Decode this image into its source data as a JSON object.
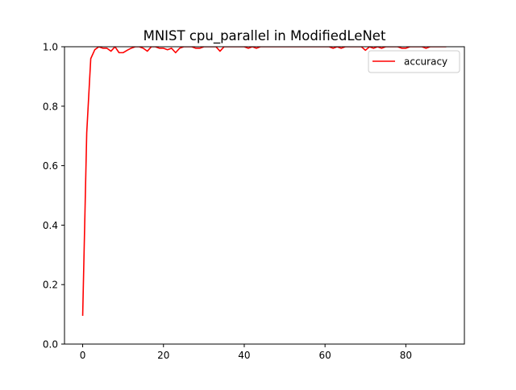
{
  "chart_data": {
    "type": "line",
    "title": "MNIST cpu_parallel in ModifiedLeNet",
    "xlabel": "",
    "ylabel": "",
    "xlim": [
      -4.5,
      94.5
    ],
    "ylim": [
      0.0,
      1.0
    ],
    "xticks": [
      0,
      20,
      40,
      60,
      80
    ],
    "xtick_labels": [
      "0",
      "20",
      "40",
      "60",
      "80"
    ],
    "yticks": [
      0.0,
      0.2,
      0.4,
      0.6,
      0.8,
      1.0
    ],
    "ytick_labels": [
      "0.0",
      "0.2",
      "0.4",
      "0.6",
      "0.8",
      "1.0"
    ],
    "grid": false,
    "legend_position": "upper right",
    "series": [
      {
        "name": "accuracy",
        "color": "#ff0000",
        "x": [
          0,
          1,
          2,
          3,
          4,
          5,
          6,
          7,
          8,
          9,
          10,
          11,
          12,
          13,
          14,
          15,
          16,
          17,
          18,
          19,
          20,
          21,
          22,
          23,
          24,
          25,
          26,
          27,
          28,
          29,
          30,
          31,
          32,
          33,
          34,
          35,
          36,
          37,
          38,
          39,
          40,
          41,
          42,
          43,
          44,
          45,
          46,
          47,
          48,
          49,
          50,
          51,
          52,
          53,
          54,
          55,
          56,
          57,
          58,
          59,
          60,
          61,
          62,
          63,
          64,
          65,
          66,
          67,
          68,
          69,
          70,
          71,
          72,
          73,
          74,
          75,
          76,
          77,
          78,
          79,
          80,
          81,
          82,
          83,
          84,
          85,
          86,
          87,
          88,
          89,
          90
        ],
        "values": [
          0.095,
          0.71,
          0.96,
          0.99,
          1.0,
          0.995,
          0.995,
          0.985,
          1.0,
          0.98,
          0.98,
          0.988,
          0.995,
          1.0,
          1.0,
          0.995,
          0.985,
          1.0,
          1.0,
          0.995,
          0.995,
          0.99,
          0.995,
          0.98,
          0.995,
          1.0,
          1.0,
          1.0,
          0.995,
          0.995,
          1.0,
          1.0,
          1.0,
          1.0,
          0.985,
          1.0,
          1.0,
          1.0,
          1.0,
          1.0,
          1.0,
          0.995,
          1.0,
          0.995,
          1.0,
          1.0,
          1.0,
          1.0,
          1.0,
          1.0,
          1.0,
          1.0,
          1.0,
          1.0,
          1.0,
          1.0,
          1.0,
          1.0,
          1.0,
          1.0,
          1.0,
          1.0,
          0.995,
          1.0,
          0.995,
          1.0,
          1.0,
          1.0,
          1.0,
          1.0,
          0.988,
          1.0,
          0.995,
          1.0,
          0.995,
          1.0,
          1.0,
          1.0,
          1.0,
          0.995,
          0.995,
          1.0,
          1.0,
          1.0,
          1.0,
          0.995,
          1.0,
          1.0,
          1.0,
          1.0,
          1.0
        ]
      }
    ]
  }
}
